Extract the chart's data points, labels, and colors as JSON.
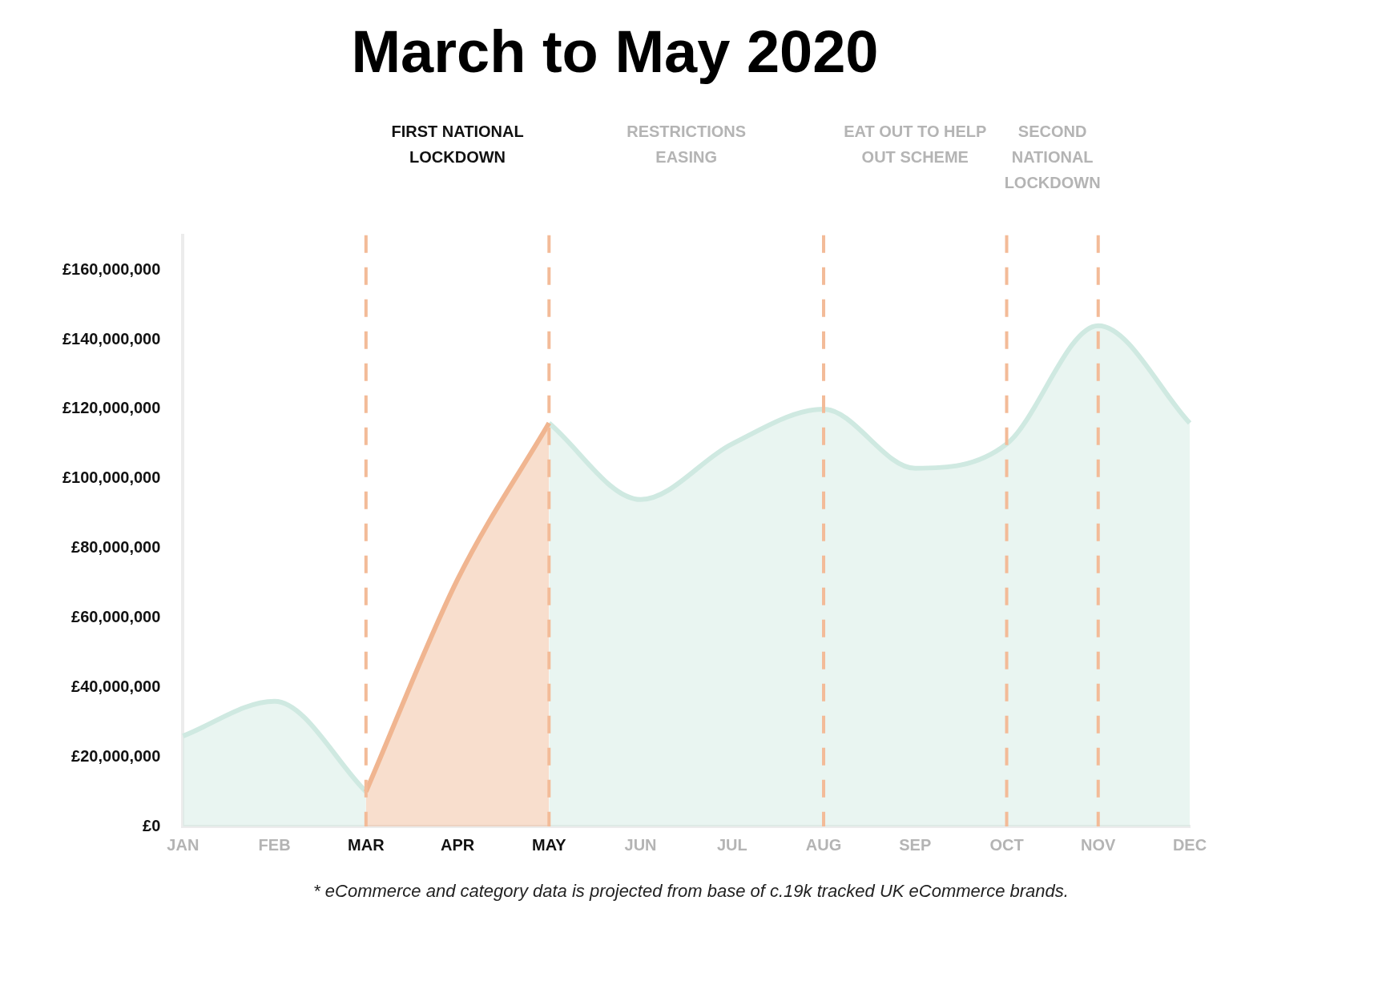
{
  "chart_data": {
    "type": "area",
    "title": "March to May 2020",
    "categories": [
      "JAN",
      "FEB",
      "MAR",
      "APR",
      "MAY",
      "JUN",
      "JUL",
      "AUG",
      "SEP",
      "OCT",
      "NOV",
      "DEC"
    ],
    "series": [
      {
        "color": "#cfe9e1",
        "values": [
          26000000,
          36000000,
          10000000,
          null,
          116000000,
          94000000,
          110000000,
          120000000,
          103000000,
          110000000,
          144000000,
          116000000
        ]
      },
      {
        "color": "#f0b590",
        "values": [
          null,
          null,
          10000000,
          71000000,
          116000000,
          null,
          null,
          null,
          null,
          null,
          null,
          null
        ]
      }
    ],
    "ylim": [
      0,
      170000000
    ],
    "yticks": [
      {
        "value": 0,
        "label": "£0"
      },
      {
        "value": 20000000,
        "label": "£20,000,000"
      },
      {
        "value": 40000000,
        "label": "£40,000,000"
      },
      {
        "value": 60000000,
        "label": "£60,000,000"
      },
      {
        "value": 80000000,
        "label": "£80,000,000"
      },
      {
        "value": 100000000,
        "label": "£100,000,000"
      },
      {
        "value": 120000000,
        "label": "£120,000,000"
      },
      {
        "value": 140000000,
        "label": "£140,000,000"
      },
      {
        "value": 160000000,
        "label": "£160,000,000"
      }
    ],
    "ref_lines": [
      {
        "axis": "x",
        "value": "MAR",
        "color": "#f3bb98",
        "line_style": "dashed"
      },
      {
        "axis": "x",
        "value": "MAY",
        "color": "#f3bb98",
        "line_style": "dashed"
      },
      {
        "axis": "x",
        "value": "AUG",
        "color": "#f3bb98",
        "line_style": "dashed"
      },
      {
        "axis": "x",
        "value": "OCT",
        "color": "#f3bb98",
        "line_style": "dashed"
      },
      {
        "axis": "x",
        "value": "NOV",
        "color": "#f3bb98",
        "line_style": "dashed"
      }
    ],
    "grid": false,
    "legend": false,
    "annotations": [
      "FIRST NATIONAL LOCKDOWN",
      "RESTRICTIONS EASING",
      "EAT OUT TO HELP OUT SCHEME",
      "SECOND NATIONAL LOCKDOWN",
      "* eCommerce and category data is projected from base of c.19k tracked UK eCommerce brands."
    ]
  }
}
